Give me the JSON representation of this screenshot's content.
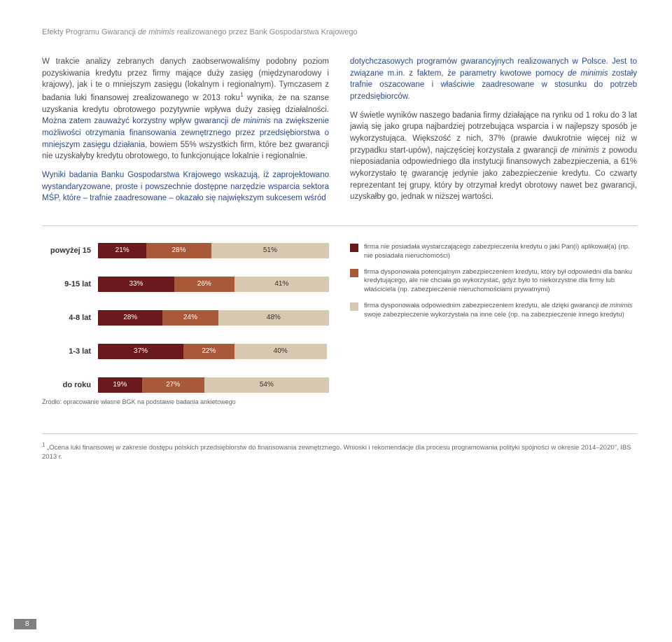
{
  "header": {
    "prefix": "Efekty Programu Gwarancji ",
    "italic": "de minimis",
    "suffix": " realizowanego przez Bank Gospodarstwa Krajowego"
  },
  "col1": {
    "p1a": "W trakcie analizy zebranych danych zaobserwowaliśmy podobny poziom pozyskiwania kredytu przez firmy mające duży zasięg (międzynarodowy i krajowy), jak i te o mniejszym zasięgu (lokalnym i regionalnym). Tymczasem z badania luki finansowej zrealizowanego w 2013 roku",
    "sup": "1",
    "p1b": " wynika, że na szanse uzyskania kredytu obrotowego pozytywnie wpływa duży zasięg działalności. ",
    "emph1a": "Można zatem zauważyć korzystny wpływ gwarancji ",
    "emph1i": "de minimis",
    "emph1b": " na zwiększenie możliwości otrzymania finansowania zewnętrznego przez przedsiębiorstwa o mniejszym zasięgu działania",
    "p1c": ", bowiem 55% wszystkich firm, które bez gwarancji nie uzyskałyby kredytu obrotowego, to funkcjonujące lokalnie i regionalnie.",
    "emph2": "Wyniki badania Banku Gospodarstwa Krajowego wskazują, iż zaprojektowano wystandaryzowane, proste i powszechnie dostępne narzędzie wsparcia sektora MŚP, które – trafnie zaadresowane – okazało się największym sukcesem wśród "
  },
  "col2": {
    "emph2cont": "dotychczasowych programów gwarancyjnych realizowanych w Polsce. Jest to związane m.in. z faktem, że parametry kwotowe pomocy ",
    "emph2i": "de minimis",
    "emph2b": " zostały trafnie oszacowane i właściwie zaadresowane w stosunku do potrzeb przedsiębiorców.",
    "p2a": "W świetle wyników naszego badania firmy działające na rynku od 1 roku do 3 lat jawią się jako grupa najbardziej potrzebująca wsparcia i w najlepszy sposób je wykorzystująca. Większość z nich, 37% (prawie dwukrotnie więcej niż w przypadku start-upów), najczęściej korzystała z gwarancji ",
    "p2i1": "de minimis",
    "p2b": " z powodu nieposiadania odpowiedniego dla instytucji finansowych zabezpieczenia, a 61% wykorzystało tę gwarancję jedynie jako zabezpieczenie kredytu. Co czwarty reprezentant tej grupy, który by otrzymał kredyt obrotowy nawet bez gwarancji, uzyskałby go, jednak w niższej wartości."
  },
  "chart": {
    "categories": [
      "powyżej 15",
      "9-15 lat",
      "4-8 lat",
      "1-3 lat",
      "do roku"
    ],
    "series_colors": [
      "#6a1a1a",
      "#a85a3a",
      "#d8c8b0"
    ],
    "data": [
      [
        21,
        28,
        51
      ],
      [
        33,
        26,
        41
      ],
      [
        28,
        24,
        48
      ],
      [
        37,
        22,
        40
      ],
      [
        19,
        27,
        54
      ]
    ],
    "source": "Źródło: opracowanie własne BGK na podstawie badania ankietowego"
  },
  "legend": {
    "items": [
      {
        "color": "#6a1a1a",
        "text": "firma nie posiadała wystarczającego zabezpieczenia kredytu o jaki Pan(i) aplikował(a) (np. nie posiadała nieruchomości)"
      },
      {
        "color": "#a85a3a",
        "text": "firma dysponowała potencjalnym zabezpieczeniem kredytu, który był odpowiedni dla banku kredytującego, ale nie chciała go wykorzystać, gdyż było to niekorzystne dla firmy lub właściciela (np. zabezpieczenie nieruchomościami prywatnymi)"
      },
      {
        "color": "#d8c8b0",
        "text_pre": "firma dysponowała odpowiednim zabezpieczeniem kredytu, ale dzięki gwarancji ",
        "text_i": "de minimis",
        "text_post": " swoje zabezpieczenie wykorzystała na inne cele (np. na zabezpieczenie innego kredytu)"
      }
    ]
  },
  "footnote": {
    "sup": "1",
    "text": " „Ocena luki finansowej w zakresie dostępu polskich przedsiębiorstw do finansowania zewnętrznego. Wnioski i rekomendacje dla procesu programowania polityki spójności w okresie 2014–2020\", IBS 2013 r."
  },
  "page_number": "8"
}
